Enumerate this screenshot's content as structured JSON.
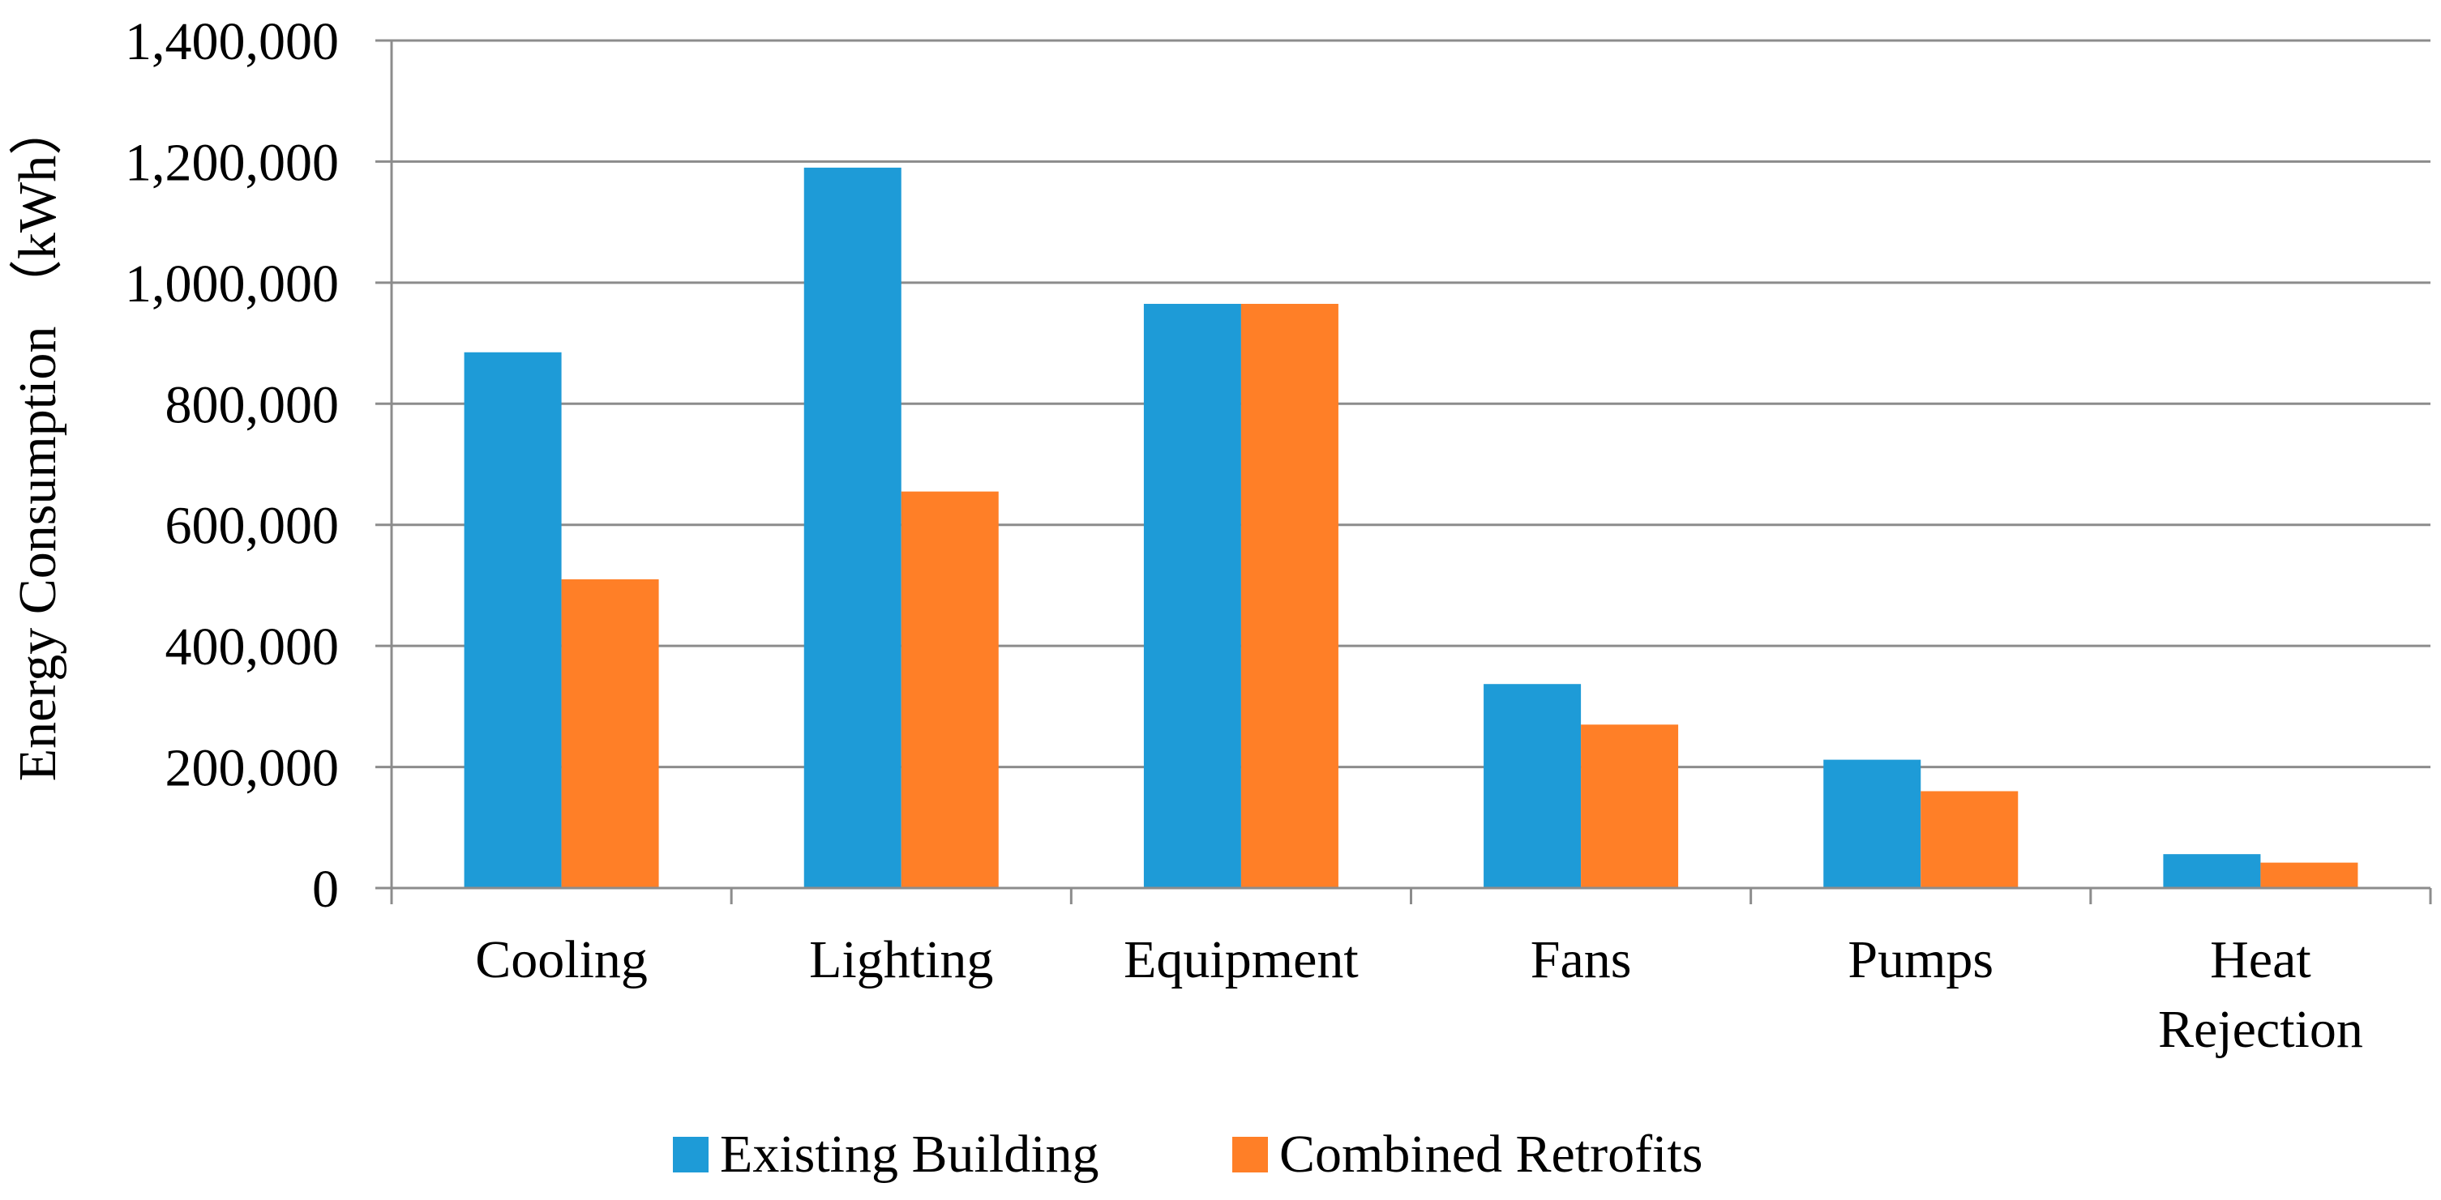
{
  "chart_data": {
    "type": "bar",
    "title": "",
    "xlabel": "",
    "ylabel": "Energy Consumption （kWh）",
    "ylim": [
      0,
      1400000
    ],
    "yticks": [
      0,
      200000,
      400000,
      600000,
      800000,
      1000000,
      1200000,
      1400000
    ],
    "ytick_labels": [
      "0",
      "200,000",
      "400,000",
      "600,000",
      "800,000",
      "1,000,000",
      "1,200,000",
      "1,400,000"
    ],
    "categories": [
      [
        "Cooling"
      ],
      [
        "Lighting"
      ],
      [
        "Equipment"
      ],
      [
        "Fans"
      ],
      [
        "Pumps"
      ],
      [
        "Heat",
        "Rejection"
      ]
    ],
    "series": [
      {
        "name": "Existing Building",
        "color": "#1E9BD7",
        "values": [
          885000,
          1190000,
          965000,
          337000,
          212000,
          56000
        ]
      },
      {
        "name": "Combined Retrofits",
        "color": "#FF7F27",
        "values": [
          510000,
          655000,
          965000,
          270000,
          160000,
          42000
        ]
      }
    ],
    "grid": true,
    "legend": "bottom"
  }
}
